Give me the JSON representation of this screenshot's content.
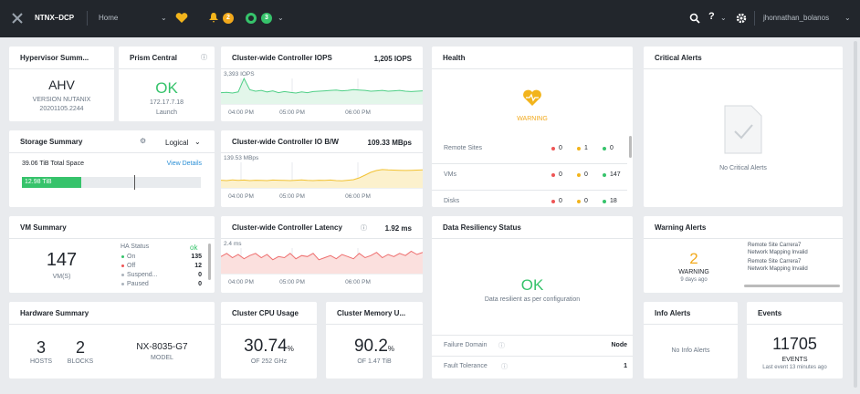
{
  "topbar": {
    "brand": "NTNX–DCP",
    "view": "Home",
    "alert_count": "2",
    "task_count": "3",
    "user": "jhonnathan_bolanos"
  },
  "hypervisor": {
    "title": "Hypervisor Summ...",
    "name": "AHV",
    "version": "VERSION NUTANIX",
    "build": "20201105.2244"
  },
  "prism_central": {
    "title": "Prism Central",
    "status": "OK",
    "ip": "172.17.7.18",
    "launch": "Launch"
  },
  "storage": {
    "title": "Storage Summary",
    "mode": "Logical",
    "total": {
      "value": 39.06,
      "label": "39.06 TiB Total Space"
    },
    "link": "View Details",
    "used": {
      "value": 12.98,
      "label": "12.98 TiB"
    },
    "color": "#36c36b"
  },
  "iops_chart": {
    "title": "Cluster-wide Controller IOPS",
    "current": "1,205 IOPS",
    "ylim": [
      0,
      {
        "value": 3393,
        "label": "3,393 IOPS"
      }
    ],
    "color": "#4fcf86",
    "fill": "#e3f6ea",
    "x_labels": [
      "04:00 PM",
      "05:00 PM",
      "06:00 PM"
    ],
    "values": [
      1500,
      1550,
      1450,
      1600,
      3393,
      1900,
      1700,
      1800,
      1600,
      1750,
      1500,
      1650,
      1550,
      1450,
      1600,
      1500,
      1650,
      1700,
      1750,
      1800,
      1850,
      1750,
      1800,
      1900,
      1850,
      1800,
      1700,
      1750,
      1800,
      1700,
      1750,
      1800,
      1700,
      1650,
      1700,
      1750
    ]
  },
  "bw_chart": {
    "title": "Cluster-wide Controller IO B/W",
    "current": "109.33 MBps",
    "ylim": [
      0,
      {
        "value": 139.53,
        "label": "139.53 MBps"
      }
    ],
    "color": "#f2c233",
    "fill": "#fcf1cd",
    "x_labels": [
      "04:00 PM",
      "05:00 PM",
      "06:00 PM"
    ],
    "values": [
      42,
      40,
      44,
      41,
      43,
      40,
      42,
      41,
      40,
      43,
      42,
      41,
      40,
      42,
      44,
      41,
      40,
      42,
      41,
      43,
      40,
      39,
      42,
      45,
      55,
      70,
      85,
      95,
      100,
      98,
      97,
      96,
      95,
      96,
      97,
      98
    ]
  },
  "latency_chart": {
    "title": "Cluster-wide Controller Latency",
    "current": "1.92 ms",
    "ylim": [
      0,
      {
        "value": 2.4,
        "label": "2.4 ms"
      }
    ],
    "color": "#ee6e6e",
    "fill": "#fbe0de",
    "x_labels": [
      "04:00 PM",
      "05:00 PM",
      "06:00 PM"
    ],
    "values": [
      1.6,
      1.9,
      1.5,
      1.8,
      1.4,
      1.7,
      1.9,
      1.5,
      1.8,
      1.3,
      1.6,
      1.5,
      1.9,
      1.4,
      1.7,
      1.6,
      1.9,
      1.3,
      1.5,
      1.7,
      1.4,
      1.8,
      1.6,
      1.4,
      1.9,
      1.5,
      1.7,
      2.0,
      1.5,
      1.8,
      1.6,
      1.9,
      1.7,
      2.1,
      1.8,
      2.0
    ]
  },
  "health": {
    "title": "Health",
    "status": "WARNING",
    "rows": [
      {
        "name": "Remote Sites",
        "critical": 0,
        "warning": 1,
        "good": 0
      },
      {
        "name": "VMs",
        "critical": 0,
        "warning": 0,
        "good": 147
      },
      {
        "name": "Disks",
        "critical": 0,
        "warning": 0,
        "good": 18
      }
    ]
  },
  "critical_alerts": {
    "title": "Critical Alerts",
    "empty": "No Critical Alerts"
  },
  "vm_summary": {
    "title": "VM Summary",
    "count": 147,
    "unit": "VM(S)",
    "ha_title": "HA Status",
    "ha_status": "ok",
    "states": [
      {
        "name": "On",
        "count": 135
      },
      {
        "name": "Off",
        "count": 12
      },
      {
        "name": "Suspend...",
        "count": 0
      },
      {
        "name": "Paused",
        "count": 0
      }
    ]
  },
  "data_resiliency": {
    "title": "Data Resiliency Status",
    "status": "OK",
    "description": "Data resilient as per configuration",
    "rows": [
      {
        "label": "Failure Domain",
        "value": "Node"
      },
      {
        "label": "Fault Tolerance",
        "value": 1
      }
    ]
  },
  "warning_alerts": {
    "title": "Warning Alerts",
    "count": 2,
    "label": "WARNING",
    "ago": "9 days ago",
    "items": [
      {
        "site": "Remote Site Carrera7",
        "issue": "Network Mapping Invalid"
      },
      {
        "site": "Remote Site Carrera7",
        "issue": "Network Mapping Invalid"
      }
    ]
  },
  "hardware": {
    "title": "Hardware Summary",
    "hosts": 3,
    "hosts_label": "HOSTS",
    "blocks": 2,
    "blocks_label": "BLOCKS",
    "model": "NX-8035-G7",
    "model_label": "MODEL"
  },
  "cpu": {
    "title": "Cluster CPU Usage",
    "value": 30.74,
    "unit": "%",
    "capacity": "OF 252 GHz"
  },
  "memory": {
    "title": "Cluster Memory U...",
    "value": 90.2,
    "unit": "%",
    "capacity": "OF 1.47 TiB"
  },
  "info_alerts": {
    "title": "Info Alerts",
    "empty": "No Info Alerts"
  },
  "events": {
    "title": "Events",
    "count": 11705,
    "label": "EVENTS",
    "last": "Last event 13 minutes ago"
  }
}
